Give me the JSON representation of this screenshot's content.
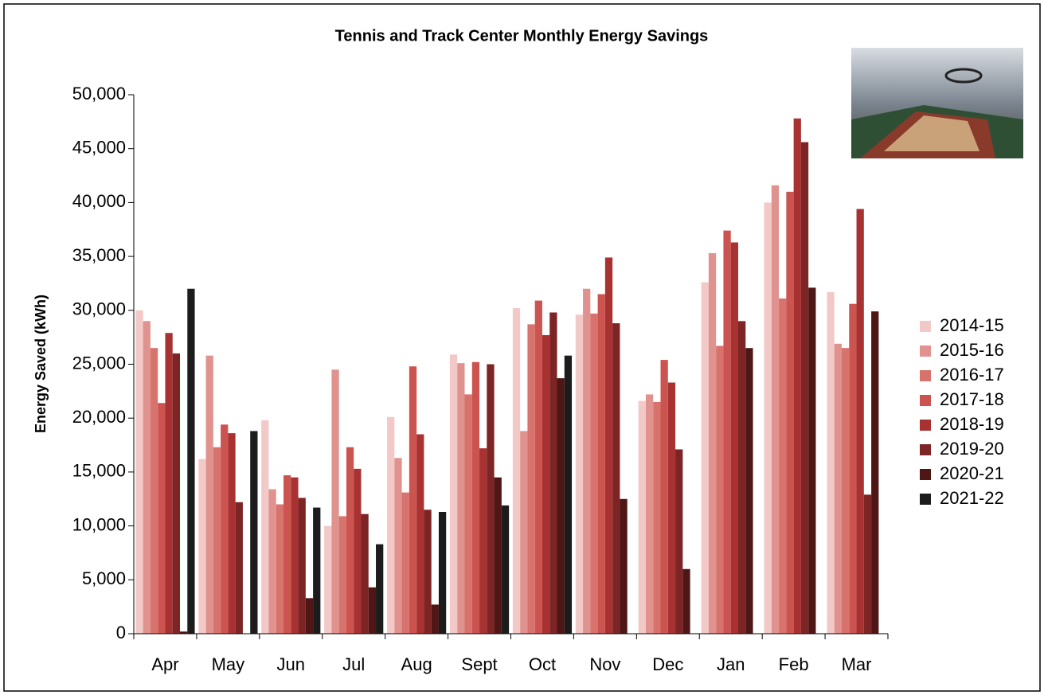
{
  "chart_data": {
    "type": "bar",
    "title": "Tennis and Track Center Monthly Energy Savings",
    "y_label": "Energy Saved (kWh)",
    "categories": [
      "Apr",
      "May",
      "Jun",
      "Jul",
      "Aug",
      "Sept",
      "Oct",
      "Nov",
      "Dec",
      "Jan",
      "Feb",
      "Mar"
    ],
    "series": [
      {
        "name": "2014-15",
        "color": "#f2c9c6",
        "values": [
          30000,
          16200,
          19800,
          10000,
          20100,
          25900,
          30200,
          29600,
          21600,
          32600,
          40000,
          31700
        ]
      },
      {
        "name": "2015-16",
        "color": "#e0938e",
        "values": [
          29000,
          25800,
          13400,
          24500,
          16300,
          25100,
          18800,
          32000,
          22200,
          35300,
          41600,
          26900
        ]
      },
      {
        "name": "2016-17",
        "color": "#d7726c",
        "values": [
          26500,
          17300,
          12000,
          10900,
          13100,
          22200,
          28700,
          29700,
          21500,
          26700,
          31100,
          26500
        ]
      },
      {
        "name": "2017-18",
        "color": "#cc5450",
        "values": [
          21400,
          19400,
          14700,
          17300,
          24800,
          25200,
          30900,
          31500,
          25400,
          37400,
          41000,
          30600
        ]
      },
      {
        "name": "2018-19",
        "color": "#a83232",
        "values": [
          27900,
          18600,
          14500,
          15300,
          18500,
          17200,
          27700,
          34900,
          23300,
          36300,
          47800,
          39400
        ]
      },
      {
        "name": "2019-20",
        "color": "#7d2424",
        "values": [
          26000,
          12200,
          12600,
          11100,
          11500,
          25000,
          29800,
          28800,
          17100,
          29000,
          45600,
          12900
        ]
      },
      {
        "name": "2020-21",
        "color": "#4f1616",
        "values": [
          200,
          null,
          3300,
          4300,
          2700,
          14500,
          23700,
          12500,
          6000,
          26500,
          32100,
          29900
        ]
      },
      {
        "name": "2021-22",
        "color": "#1c1c1c",
        "values": [
          32000,
          18800,
          11700,
          8300,
          11300,
          11900,
          25800,
          null,
          null,
          null,
          null,
          null
        ]
      }
    ],
    "ylim": [
      0,
      50000
    ],
    "yticks": [
      0,
      {
        "value": 5000,
        "label": "5,000"
      },
      {
        "value": 10000,
        "label": "10,000"
      },
      {
        "value": 15000,
        "label": "15,000"
      },
      {
        "value": 20000,
        "label": "20,000"
      },
      {
        "value": 25000,
        "label": "25,000"
      },
      {
        "value": 30000,
        "label": "30,000"
      },
      {
        "value": 35000,
        "label": "35,000"
      },
      {
        "value": 40000,
        "label": "40,000"
      },
      {
        "value": 45000,
        "label": "45,000"
      },
      {
        "value": 50000,
        "label": "50,000"
      }
    ],
    "grid": false,
    "legend": "right"
  }
}
